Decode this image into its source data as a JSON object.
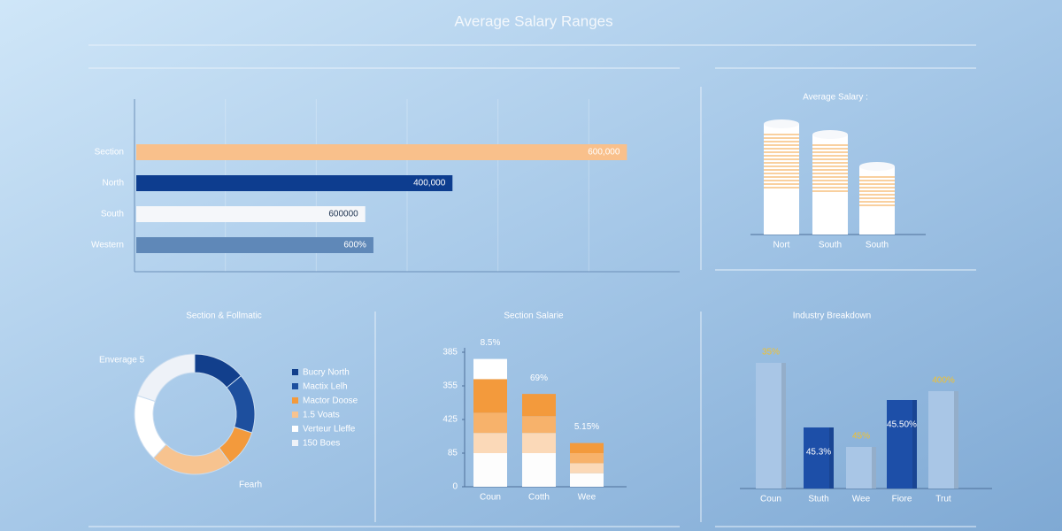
{
  "title": "Average Salary Ranges",
  "chart_data": [
    {
      "type": "barh",
      "categories": [
        "Section",
        "North",
        "South",
        "Western"
      ],
      "values": [
        90,
        58,
        42,
        43.5
      ],
      "xlim": [
        0,
        100
      ],
      "colors": [
        "#f9c08b",
        "#0d3d8f",
        "#f5f7fa",
        "#5f88b8"
      ],
      "labels": [
        "600,000",
        "400,000",
        "600000",
        "600%"
      ],
      "label_colors": [
        "#ffffff",
        "#ffffff",
        "#1e3350",
        "#ffffff"
      ]
    },
    {
      "type": "bar",
      "shape": "cylinder",
      "title": "Average Salary :",
      "categories": [
        "Nort",
        "South",
        "South"
      ],
      "values": [
        125,
        113,
        77
      ],
      "ylim": [
        0,
        130
      ],
      "color": "#ffffff",
      "stripe_color": "#f3a23f"
    },
    {
      "type": "donut",
      "title": "Section & Follmatic",
      "series": [
        {
          "name": "Bucry North",
          "color": "#123f8c",
          "value": 14
        },
        {
          "name": "Mactix Lelh",
          "color": "#1d4f9e",
          "value": 16
        },
        {
          "name": "Mactor Doose",
          "color": "#f39a3c",
          "value": 10
        },
        {
          "name": "1.5 Voats",
          "color": "#f7c38f",
          "value": 22
        },
        {
          "name": "Verteur Lleffe",
          "color": "#ffffff",
          "value": 18
        },
        {
          "name": "150 Boes",
          "color": "#eef2f8",
          "value": 20
        }
      ],
      "annotations": [
        "Enverage 5",
        "Fearh"
      ]
    },
    {
      "type": "stacked",
      "title": "Section Salarie",
      "categories": [
        "Coun",
        "Cotth",
        "Wee"
      ],
      "ylim": [
        0,
        4
      ],
      "yticks": [
        {
          "value": 0,
          "label": "0"
        },
        {
          "value": 1,
          "label": "85"
        },
        {
          "value": 2,
          "label": "425"
        },
        {
          "value": 3,
          "label": "355"
        },
        {
          "value": 4,
          "label": "385"
        }
      ],
      "series": [
        {
          "color": "#fdfdfd",
          "values": [
            1.0,
            1.0,
            0.4
          ]
        },
        {
          "color": "#fbd9b8",
          "values": [
            0.6,
            0.6,
            0.3
          ]
        },
        {
          "color": "#f7b26b",
          "values": [
            0.6,
            0.5,
            0.3
          ]
        },
        {
          "color": "#f39a3c",
          "values": [
            1.0,
            0.66,
            0.3
          ]
        },
        {
          "color": "#ffffff",
          "values": [
            0.6,
            0,
            0
          ]
        }
      ],
      "labels": [
        "8.5%",
        "69%",
        "5.15%"
      ]
    },
    {
      "type": "bar",
      "title": "Industry Breakdown",
      "categories": [
        "Coun",
        "Stuth",
        "Wee",
        "Fiore",
        "Trut"
      ],
      "values": [
        142,
        69,
        47,
        100,
        110
      ],
      "ylim": [
        0,
        150
      ],
      "colors": [
        "#a9c6e6",
        "#1d4fa8",
        "#a9c6e6",
        "#1d4fa8",
        "#a9c6e6"
      ],
      "labels": [
        "35%",
        "45.3%",
        "45%",
        "45.50%",
        "400%"
      ],
      "label_colors": [
        "#f2c12e",
        "#ffffff",
        "#f2c12e",
        "#ffffff",
        "#f2c12e"
      ]
    }
  ]
}
